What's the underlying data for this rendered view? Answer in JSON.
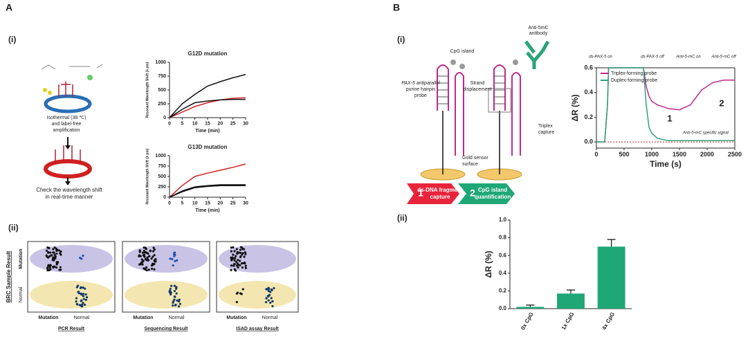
{
  "labels": {
    "A": "A",
    "A_i": "(i)",
    "A_ii": "(ii)",
    "B": "B",
    "B_i": "(i)",
    "B_ii": "(ii)"
  },
  "diagram_a": {
    "amplification": [
      "Isothermal (38 ℃)",
      "and label-free",
      "amplification"
    ],
    "check": [
      "Check the wavelength shift",
      "in real-time manner"
    ]
  },
  "results": {
    "y_title": "BRC Sample Result",
    "row_labels": [
      "Mutation",
      "Normal"
    ],
    "col_labels": [
      "Mutation",
      "Normal"
    ],
    "panels": [
      "PCR Result",
      "Sequencing Result",
      "ISAD assay Result"
    ]
  },
  "diagram_b": {
    "antibody": [
      "Anti-5mC",
      "antibody"
    ],
    "cpg": "CpG island",
    "probe": [
      "PAX-5 antiparallel",
      "purine hairpin",
      "probe"
    ],
    "strand": [
      "Strand",
      "displacement"
    ],
    "triplex": [
      "Triplex",
      "capture"
    ],
    "gold": [
      "Gold sensor",
      "surface"
    ],
    "step1": "1",
    "step1_text": [
      "ds-DNA fragment",
      "capture"
    ],
    "step2": "2",
    "step2_text": [
      "CpG island",
      "quantification"
    ]
  },
  "chart_data": [
    {
      "type": "line",
      "title": "G12D mutation",
      "x_label": "Time (min)",
      "y_label": "Resonant Wavelength Shift (λ pm)",
      "x": [
        0,
        5,
        10,
        15,
        20,
        25,
        30
      ],
      "xlim": [
        0,
        30
      ],
      "xticks": [
        0,
        5,
        10,
        15,
        20,
        25,
        30
      ],
      "ylim": [
        0,
        1000
      ],
      "yticks": [
        0,
        250,
        500,
        750,
        1000
      ],
      "series": [
        {
          "color": "#111111",
          "values": [
            0,
            250,
            420,
            570,
            650,
            720,
            780
          ]
        },
        {
          "color": "#d62020",
          "values": [
            0,
            100,
            200,
            270,
            320,
            350,
            360
          ]
        },
        {
          "color": "#111111",
          "values": [
            0,
            150,
            270,
            300,
            320,
            330,
            330
          ]
        }
      ]
    },
    {
      "type": "line",
      "title": "G13D mutation",
      "x_label": "Time (min)",
      "y_label": "Resonant Wavelength Shift (λ pm)",
      "x": [
        0,
        5,
        10,
        15,
        20,
        25,
        30
      ],
      "xlim": [
        0,
        30
      ],
      "xticks": [
        0,
        5,
        10,
        15,
        20,
        25,
        30
      ],
      "ylim": [
        0,
        1000
      ],
      "yticks": [
        0,
        250,
        500,
        750,
        1000
      ],
      "series": [
        {
          "color": "#d62020",
          "values": [
            0,
            280,
            500,
            580,
            650,
            720,
            800
          ]
        },
        {
          "color": "#111111",
          "values": [
            0,
            150,
            250,
            280,
            300,
            300,
            300
          ]
        },
        {
          "color": "#111111",
          "values": [
            0,
            130,
            230,
            260,
            280,
            280,
            280
          ]
        }
      ]
    },
    {
      "type": "line",
      "x_label": "Time (s)",
      "y_label": "ΔR (%)",
      "legend": "upper left",
      "x": [
        0,
        150,
        200,
        220,
        850,
        900,
        950,
        1000,
        1100,
        1300,
        1500,
        1700,
        1900,
        2100,
        2300,
        2500
      ],
      "xlim": [
        0,
        2500
      ],
      "xticks": [
        0,
        500,
        1000,
        1500,
        2000,
        2500
      ],
      "ylim": [
        -0.05,
        0.6
      ],
      "yticks": [
        {
          "value": 0,
          "label": "0.0"
        },
        {
          "value": 0.2,
          "label": "0.2"
        },
        {
          "value": 0.4,
          "label": "0.4"
        },
        {
          "value": 0.6,
          "label": "0.6"
        }
      ],
      "series": [
        {
          "name": "Triplex-forming probe",
          "color": "#c0288a",
          "values": [
            0,
            0,
            0.3,
            0.6,
            0.6,
            0.45,
            0.37,
            0.33,
            0.3,
            0.27,
            0.26,
            0.3,
            0.42,
            0.48,
            0.5,
            0.5
          ]
        },
        {
          "name": "Duplex-forming probe",
          "color": "#2aa37a",
          "values": [
            0,
            0,
            0.3,
            0.6,
            0.6,
            0.3,
            0.12,
            0.07,
            0.03,
            0.01,
            0.01,
            0.01,
            0.01,
            0.01,
            0.01,
            0.01
          ]
        }
      ],
      "annotations": [
        "ds-PAX-5 on",
        "ds-PAX-5 off",
        "Anti-5-mC on",
        "Anti-5-mC off",
        "1",
        "2",
        "Anti-5-mC specific signal"
      ]
    },
    {
      "type": "bar",
      "y_label": "ΔR (%)",
      "categories": [
        "0x CpG",
        "1x CpG",
        "4x CpG"
      ],
      "values": [
        0.02,
        0.17,
        0.7
      ],
      "errors": [
        0.02,
        0.04,
        0.08
      ],
      "color": "#1fa777",
      "ylim": [
        0,
        1
      ],
      "yticks": [
        {
          "value": 0,
          "label": "0.0"
        },
        {
          "value": 0.2,
          "label": "0.2"
        },
        {
          "value": 0.4,
          "label": "0.4"
        },
        {
          "value": 0.6,
          "label": "0.6"
        },
        {
          "value": 0.8,
          "label": "0.8"
        },
        {
          "value": 1,
          "label": "1.0"
        }
      ]
    }
  ]
}
